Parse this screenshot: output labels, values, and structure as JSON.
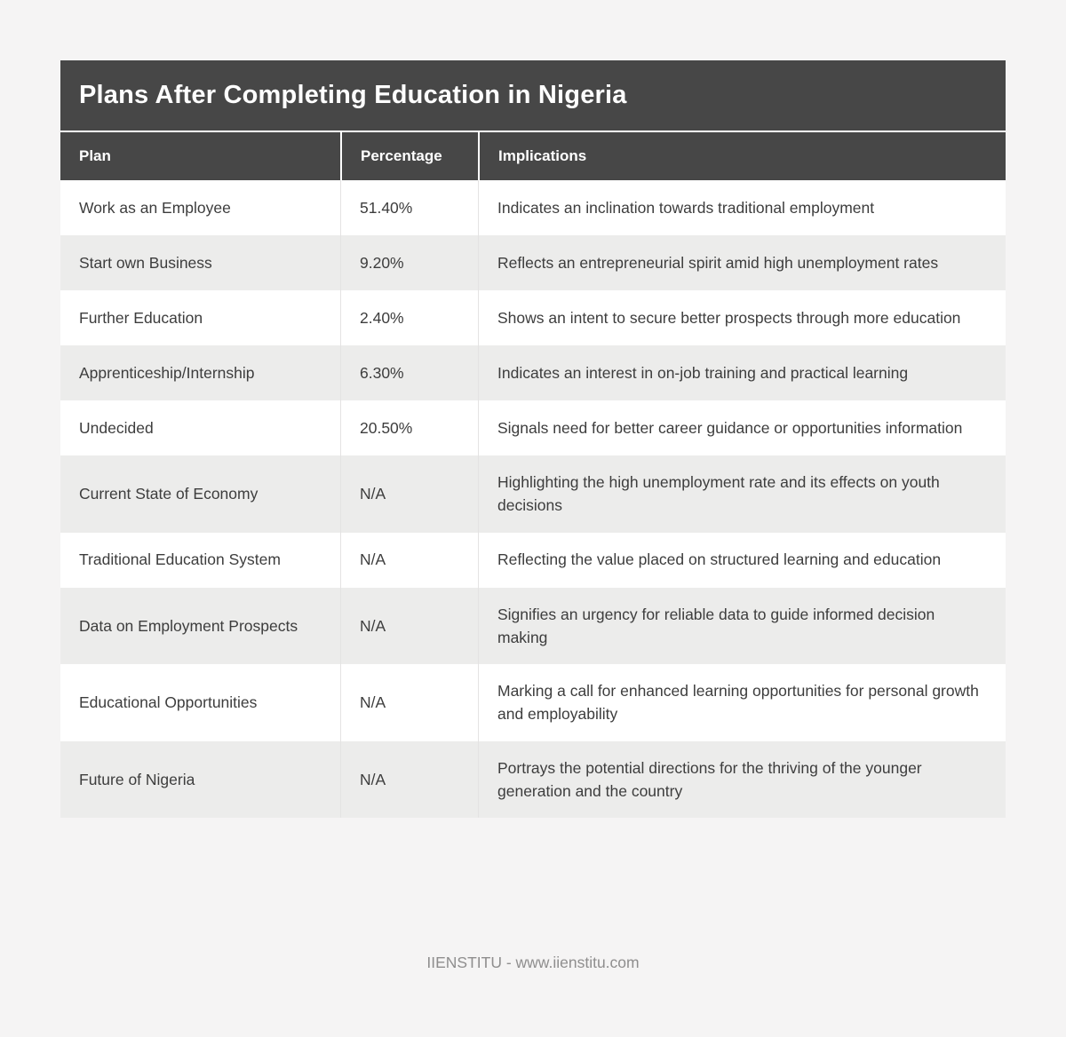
{
  "page": {
    "background": "#f5f4f4"
  },
  "colors": {
    "header_bg": "#474747",
    "header_text": "#ffffff",
    "row_bg": "#ffffff",
    "row_alt_bg": "#ececeb",
    "body_text": "#3d3d3d",
    "footer_text": "#8f8e8e"
  },
  "chart_data": {
    "type": "table",
    "title": "Plans After Completing Education in Nigeria",
    "columns": [
      "Plan",
      "Percentage",
      "Implications"
    ],
    "rows": [
      [
        "Work as an Employee",
        "51.40%",
        "Indicates an inclination towards traditional employment"
      ],
      [
        "Start own Business",
        "9.20%",
        "Reflects an entrepreneurial spirit amid high unemployment rates"
      ],
      [
        "Further Education",
        "2.40%",
        "Shows an intent to secure better prospects through more education"
      ],
      [
        "Apprenticeship/Internship",
        "6.30%",
        "Indicates an interest in on-job training and practical learning"
      ],
      [
        "Undecided",
        "20.50%",
        "Signals need for better career guidance or opportunities information"
      ],
      [
        "Current State of Economy",
        "N/A",
        "Highlighting the high unemployment rate and its effects on youth decisions"
      ],
      [
        "Traditional Education System",
        "N/A",
        "Reflecting the value placed on structured learning and education"
      ],
      [
        "Data on Employment Prospects",
        "N/A",
        "Signifies an urgency for reliable data to guide informed decision making"
      ],
      [
        "Educational Opportunities",
        "N/A",
        "Marking a call for enhanced learning opportunities for personal growth and employability"
      ],
      [
        "Future of Nigeria",
        "N/A",
        "Portrays the potential directions for the thriving of the younger generation and the country"
      ]
    ],
    "percent_values": [
      51.4,
      9.2,
      2.4,
      6.3,
      20.5,
      null,
      null,
      null,
      null,
      null
    ]
  },
  "footer": {
    "text": "IIENSTITU - www.iienstitu.com"
  }
}
